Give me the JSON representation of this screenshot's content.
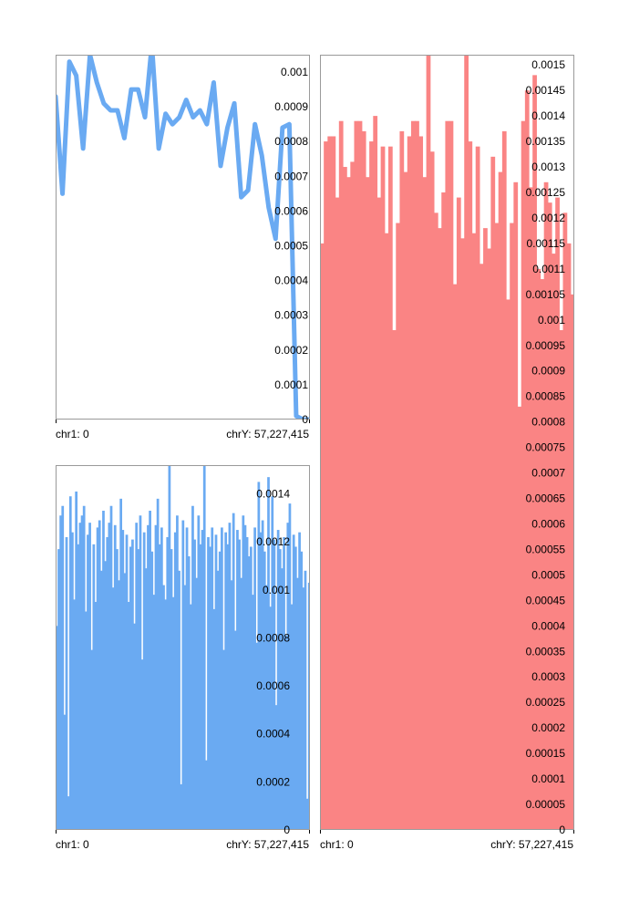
{
  "colors": {
    "blue": "#6aaaf2",
    "red": "#fa8484",
    "frame": "#9a9a9a",
    "text": "#000000"
  },
  "chart_data": [
    {
      "id": "top-left",
      "type": "line",
      "series_color": "#6aaaf2",
      "x_labels": [
        "chr1: 0",
        "chrY: 57,227,415"
      ],
      "ylim": [
        0,
        0.00105
      ],
      "y_ticks": [
        0,
        0.0001,
        0.0002,
        0.0003,
        0.0004,
        0.0005,
        0.0006,
        0.0007,
        0.0008,
        0.0009,
        0.001
      ],
      "y_tick_labels": [
        "0",
        "0.0001",
        "0.0002",
        "0.0003",
        "0.0004",
        "0.0005",
        "0.0006",
        "0.0007",
        "0.0008",
        "0.0009",
        "0.001"
      ],
      "values": [
        0.00093,
        0.00065,
        0.00103,
        0.00099,
        0.00078,
        0.00105,
        0.00097,
        0.00091,
        0.00089,
        0.00089,
        0.00081,
        0.00095,
        0.00095,
        0.00087,
        0.00108,
        0.00078,
        0.00088,
        0.00085,
        0.00087,
        0.00092,
        0.00087,
        0.00089,
        0.00085,
        0.00097,
        0.00073,
        0.00084,
        0.00091,
        0.00064,
        0.00066,
        0.00085,
        0.00076,
        0.00061,
        0.00052,
        0.00084,
        0.00085,
        1e-05,
        0.0,
        0.0
      ]
    },
    {
      "id": "bottom-left",
      "type": "bar",
      "series_color": "#6aaaf2",
      "x_labels": [
        "chr1: 0",
        "chrY: 57,227,415"
      ],
      "ylim": [
        0,
        0.00152
      ],
      "y_ticks": [
        0,
        0.0002,
        0.0004,
        0.0006,
        0.0008,
        0.001,
        0.0012,
        0.0014
      ],
      "y_tick_labels": [
        "0",
        "0.0002",
        "0.0004",
        "0.0006",
        "0.0008",
        "0.001",
        "0.0012",
        "0.0014"
      ],
      "values": [
        0.00085,
        0.00117,
        0.00131,
        0.00135,
        0.00048,
        0.00122,
        0.00014,
        0.00139,
        0.00124,
        0.00096,
        0.00141,
        0.00119,
        0.00128,
        0.00131,
        0.00135,
        0.00091,
        0.00123,
        0.00128,
        0.00075,
        0.00119,
        0.00095,
        0.00126,
        0.00129,
        0.00108,
        0.00133,
        0.00112,
        0.00122,
        0.00128,
        0.00135,
        0.00101,
        0.00127,
        0.00117,
        0.00104,
        0.00138,
        0.00125,
        0.00107,
        0.00123,
        0.00095,
        0.00118,
        0.00121,
        0.00086,
        0.00128,
        0.00117,
        0.00131,
        0.00071,
        0.00124,
        0.00109,
        0.00127,
        0.00133,
        0.00116,
        0.00098,
        0.00127,
        0.00138,
        0.00119,
        0.00126,
        0.00102,
        0.00096,
        0.00122,
        0.00152,
        0.00117,
        0.00097,
        0.00124,
        0.00131,
        0.00108,
        0.00019,
        0.00129,
        0.00102,
        0.00126,
        0.00114,
        0.00094,
        0.00135,
        0.00121,
        0.00105,
        0.00131,
        0.00119,
        0.00125,
        0.00152,
        0.00029,
        0.00122,
        0.00118,
        0.00126,
        0.00092,
        0.00123,
        0.00108,
        0.00116,
        0.00126,
        0.00075,
        0.00124,
        0.00119,
        0.00128,
        0.00104,
        0.00132,
        0.00083,
        0.00125,
        0.00121,
        0.00105,
        0.00131,
        0.00127,
        0.00122,
        0.00114,
        0.00118,
        0.00098,
        0.00126,
        0.00078,
        0.00145,
        0.00124,
        0.00129,
        0.00116,
        0.00102,
        0.00147,
        0.00093,
        0.00139,
        0.00121,
        0.00052,
        0.00125,
        0.00117,
        0.00109,
        0.00122,
        0.00081,
        0.00128,
        0.00136,
        0.00094,
        0.00123,
        0.00118,
        0.00105,
        0.00124,
        0.00116,
        0.00101,
        0.00108,
        0.00013,
        0.00103
      ]
    },
    {
      "id": "right",
      "type": "bar",
      "series_color": "#fa8484",
      "x_labels": [
        "chr1: 0",
        "chrY: 57,227,415"
      ],
      "ylim": [
        0,
        0.00152
      ],
      "y_ticks": [
        0,
        5e-05,
        0.0001,
        0.00015,
        0.0002,
        0.00025,
        0.0003,
        0.00035,
        0.0004,
        0.00045,
        0.0005,
        0.00055,
        0.0006,
        0.00065,
        0.0007,
        0.00075,
        0.0008,
        0.00085,
        0.0009,
        0.00095,
        0.001,
        0.00105,
        0.0011,
        0.00115,
        0.0012,
        0.00125,
        0.0013,
        0.00135,
        0.0014,
        0.00145,
        0.0015
      ],
      "y_tick_labels": [
        "0",
        "0.00005",
        "0.0001",
        "0.00015",
        "0.0002",
        "0.00025",
        "0.0003",
        "0.00035",
        "0.0004",
        "0.00045",
        "0.0005",
        "0.00055",
        "0.0006",
        "0.00065",
        "0.0007",
        "0.00075",
        "0.0008",
        "0.00085",
        "0.0009",
        "0.00095",
        "0.001",
        "0.00105",
        "0.0011",
        "0.00115",
        "0.0012",
        "0.00125",
        "0.0013",
        "0.00135",
        "0.0014",
        "0.00145",
        "0.0015"
      ],
      "values": [
        0.00115,
        0.00135,
        0.00136,
        0.00136,
        0.00124,
        0.00139,
        0.0013,
        0.00128,
        0.00131,
        0.00139,
        0.00139,
        0.00137,
        0.00128,
        0.00135,
        0.0014,
        0.00124,
        0.00134,
        0.00117,
        0.00134,
        0.00098,
        0.00119,
        0.00137,
        0.00129,
        0.00136,
        0.00139,
        0.00139,
        0.00136,
        0.00128,
        0.00155,
        0.00133,
        0.00121,
        0.00118,
        0.00125,
        0.00139,
        0.00139,
        0.00107,
        0.00124,
        0.00116,
        0.00154,
        0.00135,
        0.00117,
        0.00134,
        0.00111,
        0.00118,
        0.00114,
        0.00132,
        0.00119,
        0.00129,
        0.00137,
        0.00104,
        0.00119,
        0.00127,
        0.00083,
        0.00139,
        0.00145,
        0.00126,
        0.00148,
        0.0011,
        0.00108,
        0.00127,
        0.00123,
        0.00113,
        0.00124,
        0.00098,
        0.00121,
        0.00115,
        0.00105
      ]
    }
  ]
}
